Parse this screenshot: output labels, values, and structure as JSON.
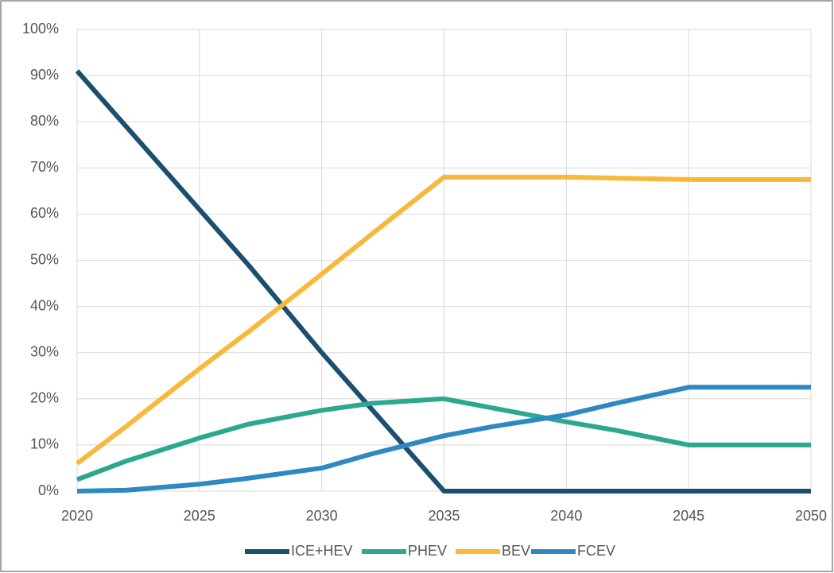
{
  "chart_data": {
    "type": "line",
    "x": [
      2020,
      2022,
      2025,
      2027,
      2030,
      2032,
      2035,
      2037,
      2040,
      2042,
      2045,
      2050
    ],
    "series": [
      {
        "name": "ICE+HEV",
        "color": "#1b4f6f",
        "values": [
          91,
          79,
          61,
          49,
          30,
          18,
          0,
          0,
          0,
          0,
          0,
          0
        ]
      },
      {
        "name": "PHEV",
        "color": "#2ba88f",
        "values": [
          2.5,
          6.5,
          11.5,
          14.5,
          17.5,
          19,
          20,
          18,
          15,
          13.2,
          10,
          10
        ]
      },
      {
        "name": "BEV",
        "color": "#f8b83a",
        "values": [
          6,
          14,
          26.5,
          34.5,
          47,
          55.5,
          68,
          68,
          68,
          67.8,
          67.5,
          67.5
        ]
      },
      {
        "name": "FCEV",
        "color": "#2e89c3",
        "values": [
          0,
          0.2,
          1.5,
          2.8,
          5,
          8,
          12,
          14,
          16.5,
          19,
          22.5,
          22.5
        ]
      }
    ],
    "xlim": [
      2020,
      2050
    ],
    "xticks": [
      2020,
      2025,
      2030,
      2035,
      2040,
      2045,
      2050
    ],
    "ylim": [
      0,
      100
    ],
    "yticks": [
      {
        "value": 0,
        "label": "0%"
      },
      {
        "value": 10,
        "label": "10%"
      },
      {
        "value": 20,
        "label": "20%"
      },
      {
        "value": 30,
        "label": "30%"
      },
      {
        "value": 40,
        "label": "40%"
      },
      {
        "value": 50,
        "label": "50%"
      },
      {
        "value": 60,
        "label": "60%"
      },
      {
        "value": 70,
        "label": "70%"
      },
      {
        "value": 80,
        "label": "80%"
      },
      {
        "value": 90,
        "label": "90%"
      },
      {
        "value": 100,
        "label": "100%"
      }
    ],
    "grid": true,
    "legend": "bottom"
  }
}
